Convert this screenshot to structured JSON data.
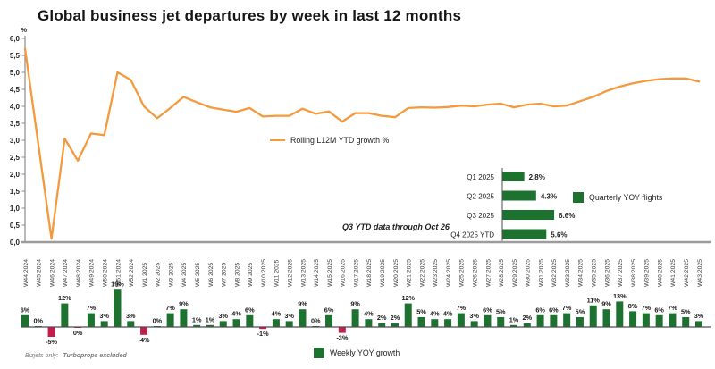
{
  "title": "Global business jet departures by week in last 12 months",
  "footnote": {
    "prefix": "Bizjets only:",
    "emphasis": "Turboprops excluded"
  },
  "colors": {
    "line": "#F5993D",
    "positive_bar": "#1E7230",
    "negative_bar": "#C41D4D",
    "axis": "#8C8C8C",
    "axis_major": "#9C9C9C",
    "baseline": "#4D4D4D",
    "tick_text": "#262626",
    "label_text": "#1A1A1A",
    "muted_text": "#3D3D3D"
  },
  "chart_data": [
    {
      "type": "line",
      "legend": "Rolling L12M YTD growth %",
      "ylabel": "%",
      "ylim": [
        0,
        6
      ],
      "ytick_step": 0.5,
      "yticklabels": [
        "6,0",
        "5,5",
        "5,0",
        "4,5",
        "4,0",
        "3,5",
        "3,0",
        "2,5",
        "2,0",
        "1,5",
        "1,0",
        "0,5",
        "0,0"
      ],
      "grid": false,
      "x": [
        "W44 2024",
        "W45 2024",
        "W46 2024",
        "W47 2024",
        "W48 2024",
        "W49 2024",
        "W50 2024",
        "W51 2024",
        "W52 2024",
        "W1 2025",
        "W2 2025",
        "W3 2025",
        "W4 2025",
        "W5 2025",
        "W6 2025",
        "W7 2025",
        "W8 2025",
        "W9 2025",
        "W10 2025",
        "W11 2025",
        "W12 2025",
        "W13 2025",
        "W14 2025",
        "W15 2025",
        "W16 2025",
        "W17 2025",
        "W18 2025",
        "W19 2025",
        "W20 2025",
        "W21 2025",
        "W22 2025",
        "W23 2025",
        "W24 2025",
        "W25 2025",
        "W26 2025",
        "W27 2025",
        "W28 2025",
        "W29 2025",
        "W30 2025",
        "W31 2025",
        "W32 2025",
        "W33 2025",
        "W34 2025",
        "W35 2025",
        "W36 2025",
        "W37 2025",
        "W38 2025",
        "W39 2025",
        "W40 2025",
        "W41 2025",
        "W42 2025",
        "W43 2025"
      ],
      "values": [
        5.7,
        2.9,
        0.1,
        3.05,
        2.4,
        3.2,
        3.15,
        5.0,
        4.78,
        4.0,
        3.65,
        3.95,
        4.28,
        4.12,
        3.97,
        3.9,
        3.84,
        3.95,
        3.7,
        3.72,
        3.72,
        3.93,
        3.78,
        3.85,
        3.55,
        3.8,
        3.8,
        3.72,
        3.68,
        3.95,
        3.97,
        3.96,
        3.98,
        4.02,
        4.0,
        4.05,
        4.08,
        3.97,
        4.05,
        4.08,
        4.0,
        4.02,
        4.15,
        4.28,
        4.45,
        4.58,
        4.68,
        4.75,
        4.8,
        4.82,
        4.82,
        4.73
      ]
    },
    {
      "type": "bar",
      "legend": "Weekly YOY growth",
      "categories": [
        "W44 2024",
        "W45 2024",
        "W46 2024",
        "W47 2024",
        "W48 2024",
        "W49 2024",
        "W50 2024",
        "W51 2024",
        "W52 2024",
        "W1 2025",
        "W2 2025",
        "W3 2025",
        "W4 2025",
        "W5 2025",
        "W6 2025",
        "W7 2025",
        "W8 2025",
        "W9 2025",
        "W10 2025",
        "W11 2025",
        "W12 2025",
        "W13 2025",
        "W14 2025",
        "W15 2025",
        "W16 2025",
        "W17 2025",
        "W18 2025",
        "W19 2025",
        "W20 2025",
        "W21 2025",
        "W22 2025",
        "W23 2025",
        "W24 2025",
        "W25 2025",
        "W26 2025",
        "W27 2025",
        "W28 2025",
        "W29 2025",
        "W30 2025",
        "W31 2025",
        "W32 2025",
        "W33 2025",
        "W34 2025",
        "W35 2025",
        "W36 2025",
        "W37 2025",
        "W38 2025",
        "W39 2025",
        "W40 2025",
        "W41 2025",
        "W42 2025",
        "W43 2025"
      ],
      "values": [
        6,
        0,
        -5,
        12,
        0,
        7,
        3,
        19,
        3,
        -4,
        0,
        7,
        9,
        1,
        1,
        3,
        4,
        6,
        -1,
        4,
        3,
        9,
        0,
        6,
        -3,
        9,
        4,
        2,
        2,
        12,
        5,
        4,
        4,
        7,
        3,
        6,
        5,
        1,
        2,
        6,
        6,
        7,
        5,
        11,
        9,
        13,
        8,
        7,
        6,
        7,
        5,
        3
      ],
      "zero_label_below_indices": [
        4
      ]
    },
    {
      "type": "bar",
      "orientation": "horizontal",
      "legend": "Quarterly YOY flights",
      "categories": [
        "Q1 2025",
        "Q2 2025",
        "Q3 2025",
        "Q4 2025 YTD"
      ],
      "values": [
        2.8,
        4.3,
        6.6,
        5.6
      ],
      "labels": [
        "2.8%",
        "4.3%",
        "6.6%",
        "5.6%"
      ],
      "annotation": "Q3 YTD data through Oct 26"
    }
  ]
}
